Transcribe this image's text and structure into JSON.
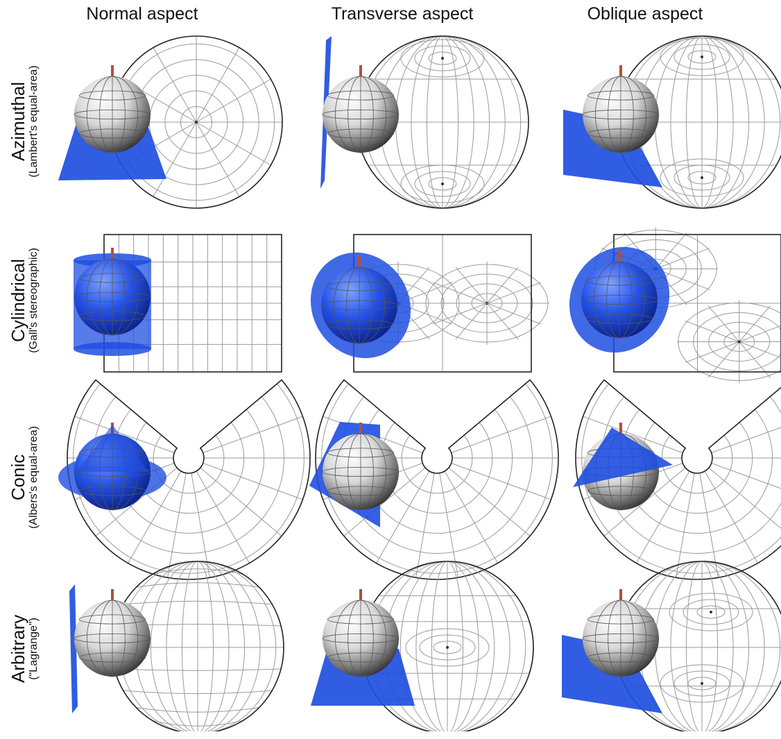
{
  "columns": [
    {
      "label": "Normal aspect"
    },
    {
      "label": "Transverse aspect"
    },
    {
      "label": "Oblique aspect"
    }
  ],
  "rows": [
    {
      "label": "Azimuthal",
      "sublabel": "(Lambert's equal-area)"
    },
    {
      "label": "Cylindrical",
      "sublabel": "(Gall's stereographic)"
    },
    {
      "label": "Conic",
      "sublabel": "(Albers's equal-area)"
    },
    {
      "label": "Arbitrary",
      "sublabel": "(\"Lagrange\")"
    }
  ],
  "colors": {
    "surface": "#1f4fe0",
    "graticule": "#9a9a9a",
    "outline": "#222222",
    "axis": "#b0503a"
  }
}
